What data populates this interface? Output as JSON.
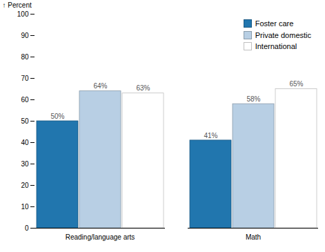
{
  "chart_data": {
    "type": "bar",
    "categories": [
      "Reading/language arts",
      "Math"
    ],
    "series": [
      {
        "name": "Foster care",
        "color": "#2176ae",
        "values": [
          50,
          41
        ],
        "value_labels": [
          "50%",
          "41%"
        ]
      },
      {
        "name": "Private domestic",
        "color": "#b8cfe4",
        "values": [
          64,
          58
        ],
        "value_labels": [
          "64%",
          "58%"
        ]
      },
      {
        "name": "International",
        "color": "#ffffff",
        "values": [
          63,
          65
        ],
        "value_labels": [
          "63%",
          "65%"
        ]
      }
    ],
    "ylabel": "Percent",
    "ylim": [
      0,
      100
    ],
    "yticks": [
      0,
      10,
      20,
      30,
      40,
      50,
      60,
      70,
      80,
      90,
      100
    ],
    "grid": false,
    "legend": "upper right",
    "data_labels": true
  }
}
